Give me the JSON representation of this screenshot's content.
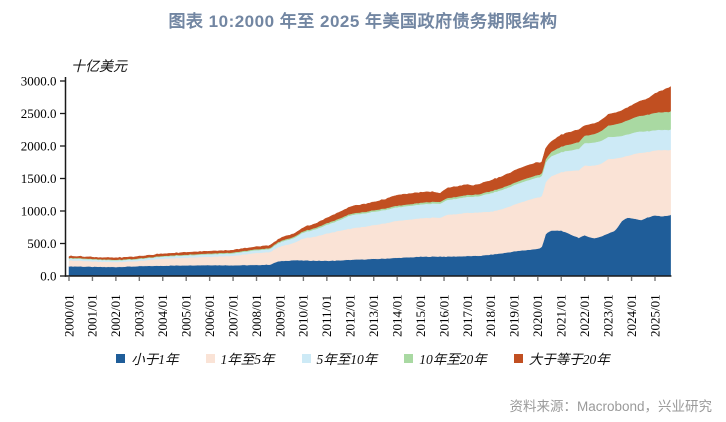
{
  "header": {
    "title": "图表 10:2000 年至 2025 年美国政府债务期限结构"
  },
  "footer": {
    "source": "资料来源：Macrobond，兴业研究"
  },
  "chart_data": {
    "type": "area",
    "stacked": true,
    "title": "图表 10:2000 年至 2025 年美国政府债务期限结构",
    "ylabel": "十亿美元",
    "xlabel": "",
    "ylim": [
      0,
      3000
    ],
    "ytick_step": 500,
    "ytick_labels": [
      "0.0",
      "500.0",
      "1000.0",
      "1500.0",
      "2000.0",
      "2500.0",
      "3000.0"
    ],
    "xtick_labels": [
      "2000/01",
      "2001/01",
      "2002/01",
      "2003/01",
      "2004/01",
      "2005/01",
      "2006/01",
      "2007/01",
      "2008/01",
      "2009/01",
      "2010/01",
      "2011/01",
      "2012/01",
      "2013/01",
      "2014/01",
      "2015/01",
      "2016/01",
      "2017/01",
      "2018/01",
      "2019/01",
      "2020/01",
      "2021/01",
      "2022/01",
      "2023/01",
      "2024/01",
      "2025/01"
    ],
    "x_range_years": [
      2000,
      2025.7
    ],
    "grid": false,
    "legend_position": "bottom",
    "x_years": [
      2000,
      2000.5,
      2001,
      2001.5,
      2002,
      2003,
      2004,
      2005,
      2006,
      2007,
      2008,
      2008.6,
      2008.9,
      2009.2,
      2009.6,
      2010,
      2010.5,
      2011,
      2011.5,
      2012,
      2012.5,
      2013,
      2013.5,
      2014,
      2014.5,
      2015,
      2015.5,
      2015.85,
      2016.1,
      2016.5,
      2017,
      2017.25,
      2017.5,
      2018,
      2018.5,
      2019,
      2019.5,
      2019.9,
      2020.15,
      2020.35,
      2020.6,
      2021,
      2021.4,
      2021.75,
      2022,
      2022.4,
      2022.7,
      2023,
      2023.3,
      2023.6,
      2023.85,
      2024.1,
      2024.4,
      2024.7,
      2025,
      2025.3,
      2025.7
    ],
    "series": [
      {
        "name": "小于1年",
        "color": "#1F5D99",
        "values": [
          150,
          148,
          143,
          140,
          140,
          152,
          160,
          165,
          170,
          166,
          170,
          178,
          225,
          235,
          245,
          240,
          238,
          235,
          240,
          250,
          256,
          263,
          270,
          280,
          288,
          298,
          300,
          302,
          300,
          303,
          308,
          310,
          312,
          330,
          352,
          380,
          400,
          415,
          430,
          660,
          700,
          700,
          640,
          590,
          625,
          580,
          610,
          655,
          700,
          855,
          900,
          885,
          858,
          905,
          935,
          918,
          940
        ]
      },
      {
        "name": "1年至5年",
        "color": "#FAE3D6",
        "values": [
          92,
          88,
          82,
          78,
          76,
          80,
          108,
          120,
          130,
          146,
          185,
          195,
          215,
          240,
          265,
          340,
          370,
          420,
          455,
          480,
          500,
          520,
          545,
          570,
          580,
          592,
          600,
          598,
          640,
          650,
          668,
          660,
          672,
          660,
          680,
          720,
          760,
          790,
          780,
          800,
          840,
          900,
          980,
          1040,
          1075,
          1120,
          1120,
          1145,
          1110,
          975,
          950,
          995,
          1037,
          1005,
          1000,
          1020,
          1000
        ]
      },
      {
        "name": "5年至10年",
        "color": "#CDEAF6",
        "values": [
          30,
          29,
          28,
          27,
          26,
          28,
          32,
          33,
          36,
          38,
          42,
          45,
          60,
          70,
          75,
          90,
          110,
          135,
          160,
          205,
          205,
          205,
          205,
          208,
          210,
          212,
          215,
          216,
          228,
          235,
          245,
          246,
          250,
          285,
          295,
          300,
          305,
          305,
          310,
          305,
          308,
          308,
          315,
          330,
          345,
          355,
          350,
          340,
          335,
          330,
          330,
          330,
          328,
          320,
          310,
          310,
          310
        ]
      },
      {
        "name": "10年至20年",
        "color": "#A9D9A2",
        "values": [
          10,
          10,
          10,
          10,
          10,
          10,
          11,
          12,
          13,
          14,
          15,
          16,
          17,
          18,
          18,
          20,
          22,
          24,
          25,
          22,
          22,
          23,
          24,
          25,
          25,
          27,
          28,
          28,
          29,
          29,
          30,
          30,
          30,
          31,
          32,
          34,
          36,
          38,
          40,
          50,
          70,
          85,
          95,
          105,
          115,
          130,
          150,
          175,
          190,
          205,
          218,
          230,
          242,
          255,
          268,
          272,
          280
        ]
      },
      {
        "name": "大于等于20年",
        "color": "#C14F21",
        "values": [
          25,
          25,
          25,
          26,
          28,
          30,
          32,
          33,
          34,
          35,
          38,
          40,
          42,
          45,
          48,
          55,
          65,
          80,
          95,
          110,
          115,
          125,
          140,
          160,
          160,
          158,
          150,
          132,
          150,
          155,
          158,
          138,
          155,
          165,
          175,
          185,
          190,
          195,
          175,
          170,
          160,
          180,
          185,
          190,
          155,
          160,
          165,
          170,
          175,
          185,
          195,
          210,
          225,
          245,
          295,
          330,
          385
        ]
      }
    ]
  }
}
